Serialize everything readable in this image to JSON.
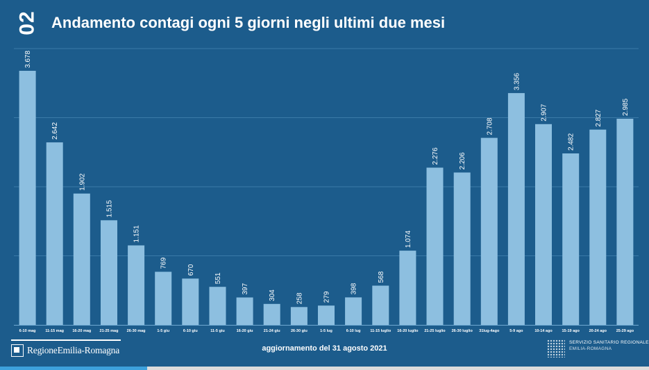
{
  "header": {
    "number": "02",
    "title": "Andamento contagi ogni 5 giorni negli ultimi due mesi"
  },
  "footer": {
    "region_logo": "RegioneEmilia-Romagna",
    "update_text": "aggiornamento del 31 agosto 2021",
    "service_line1": "SERVIZIO SANITARIO REGIONALE",
    "service_line2": "EMILIA-ROMAGNA"
  },
  "colors": {
    "background": "#1c5c8c",
    "bar": "#8dbfe0",
    "grid": "#3a7aa8"
  },
  "chart_data": {
    "type": "bar",
    "title": "Andamento contagi ogni 5 giorni negli ultimi due mesi",
    "xlabel": "",
    "ylabel": "",
    "ylim": [
      0,
      4000
    ],
    "grid": true,
    "categories": [
      "6-10 mag",
      "11-15 mag",
      "16-20 mag",
      "21-25 mag",
      "26-30 mag",
      "1-5 giu",
      "6-10 giu",
      "11-5 giu",
      "16-20 giu",
      "21-24 giu",
      "26-30 giu",
      "1-5 lug",
      "6-10 lug",
      "11-15 luglio",
      "16-20 luglio",
      "21-25 luglio",
      "26-30 luglio",
      "31lug-4ago",
      "5-9 ago",
      "10-14 ago",
      "15-19 ago",
      "20-24 ago",
      "25-29 ago"
    ],
    "values": [
      3678,
      2642,
      1902,
      1515,
      1151,
      769,
      670,
      551,
      397,
      304,
      258,
      279,
      398,
      568,
      1074,
      2276,
      2206,
      2708,
      3356,
      2907,
      2482,
      2827,
      2985
    ],
    "value_labels": [
      "3.678",
      "2.642",
      "1.902",
      "1.515",
      "1.151",
      "769",
      "670",
      "551",
      "397",
      "304",
      "258",
      "279",
      "398",
      "568",
      "1.074",
      "2.276",
      "2.206",
      "2.708",
      "3.356",
      "2.907",
      "2.482",
      "2.827",
      "2.985"
    ]
  }
}
